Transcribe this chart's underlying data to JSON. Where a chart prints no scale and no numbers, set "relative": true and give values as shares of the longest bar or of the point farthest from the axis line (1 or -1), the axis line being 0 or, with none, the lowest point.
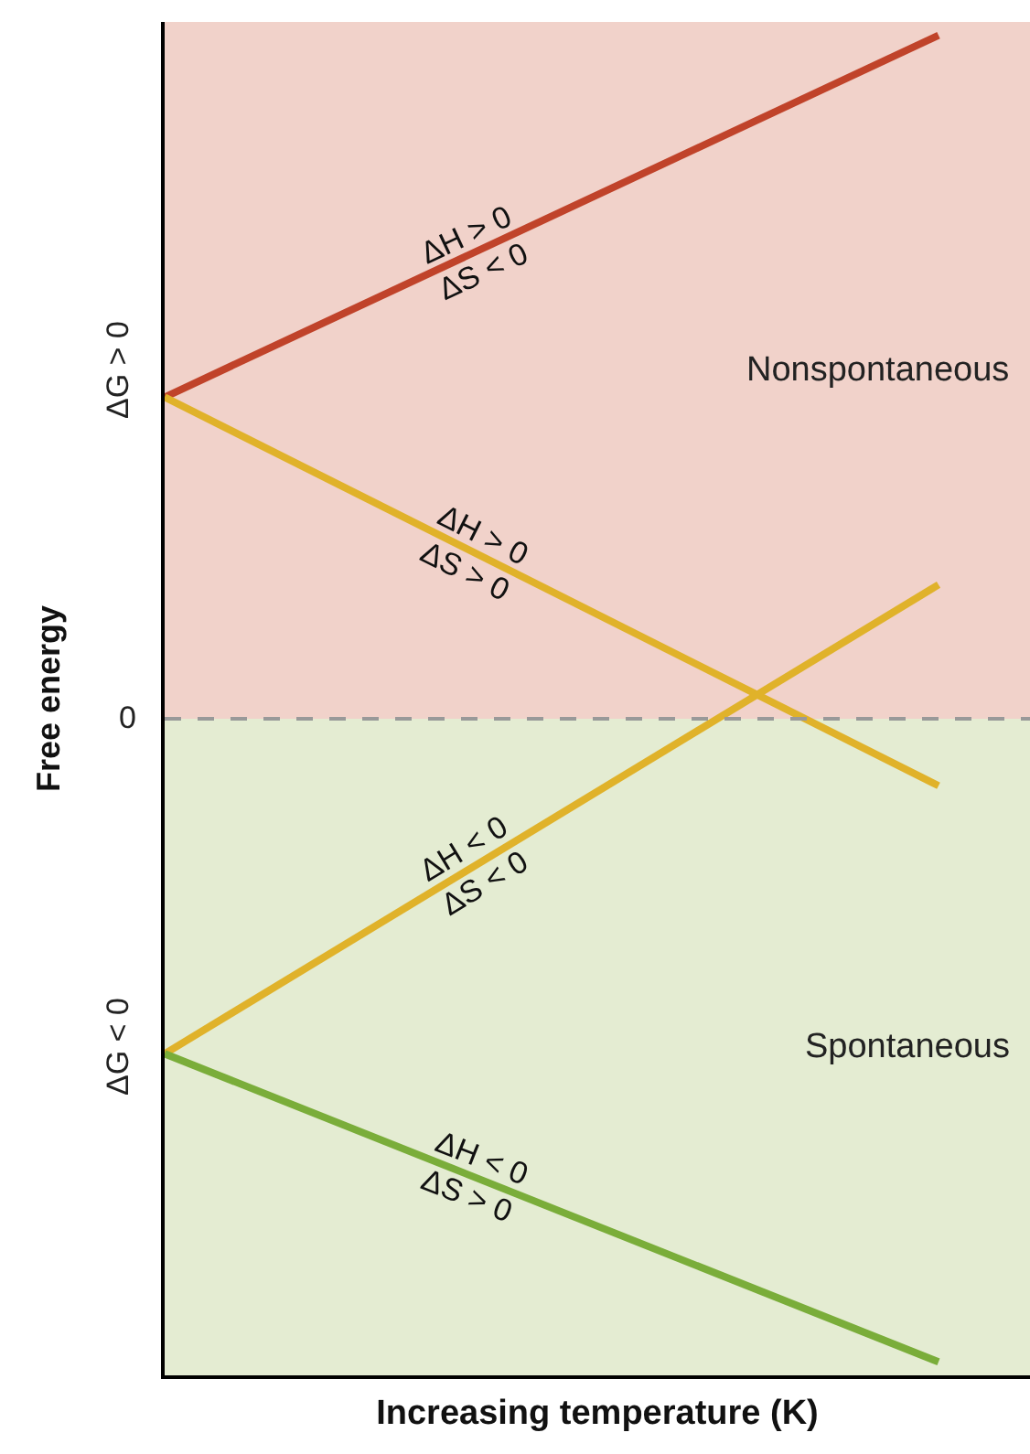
{
  "chart_data": {
    "type": "line",
    "relative": true,
    "xlabel": "Increasing temperature (K)",
    "ylabel": "Free energy",
    "categories": [
      null,
      null
    ],
    "series": [
      {
        "name": "ΔH > 0\nΔS < 0",
        "color": "#c0432a",
        "values": [
          0.73,
          1
        ]
      },
      {
        "name": "ΔH > 0\nΔS > 0",
        "color": "#e0b22a",
        "values": [
          0.73,
          0.44
        ]
      },
      {
        "name": "ΔH < 0\nΔS < 0",
        "color": "#e0b22a",
        "values": [
          0.24,
          0.59
        ]
      },
      {
        "name": "ΔH < 0\nΔS > 0",
        "color": "#7aad3a",
        "values": [
          0.24,
          0.01
        ]
      }
    ],
    "bands": [
      {
        "axis": "y",
        "from": 0.49,
        "to": 1.01,
        "label": "Nonspontaneous",
        "color": "#f1d2ca"
      },
      {
        "axis": "y",
        "from": 0,
        "to": 0.49,
        "label": "Spontaneous",
        "color": "#e4ecd2"
      }
    ],
    "ref_lines": [
      {
        "axis": "y",
        "value": 0.49,
        "label": "0",
        "color": "#999999",
        "line_style": "dashed"
      }
    ],
    "annotations": [
      "ΔG > 0",
      "ΔG < 0"
    ],
    "legend": false,
    "marker": "none",
    "line_style": "solid"
  }
}
